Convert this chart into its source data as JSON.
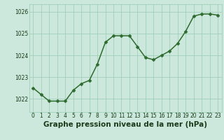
{
  "x": [
    0,
    1,
    2,
    3,
    4,
    5,
    6,
    7,
    8,
    9,
    10,
    11,
    12,
    13,
    14,
    15,
    16,
    17,
    18,
    19,
    20,
    21,
    22,
    23
  ],
  "y": [
    1022.5,
    1022.2,
    1021.9,
    1021.9,
    1021.9,
    1022.4,
    1022.7,
    1022.85,
    1023.6,
    1024.6,
    1024.9,
    1024.9,
    1024.9,
    1024.4,
    1023.9,
    1023.8,
    1024.0,
    1024.2,
    1024.55,
    1025.1,
    1025.8,
    1025.9,
    1025.9,
    1025.85
  ],
  "line_color": "#2d6a2d",
  "marker_color": "#2d6a2d",
  "bg_color": "#cce8dc",
  "grid_color": "#99ccb3",
  "xlabel": "Graphe pression niveau de la mer (hPa)",
  "xlabel_color": "#1a3a1a",
  "ylim": [
    1021.4,
    1026.35
  ],
  "xlim": [
    -0.5,
    23.5
  ],
  "yticks": [
    1022,
    1023,
    1024,
    1025,
    1026
  ],
  "xticks": [
    0,
    1,
    2,
    3,
    4,
    5,
    6,
    7,
    8,
    9,
    10,
    11,
    12,
    13,
    14,
    15,
    16,
    17,
    18,
    19,
    20,
    21,
    22,
    23
  ],
  "tick_fontsize": 5.5,
  "xlabel_fontsize": 7.5,
  "linewidth": 1.1,
  "markersize": 2.5
}
